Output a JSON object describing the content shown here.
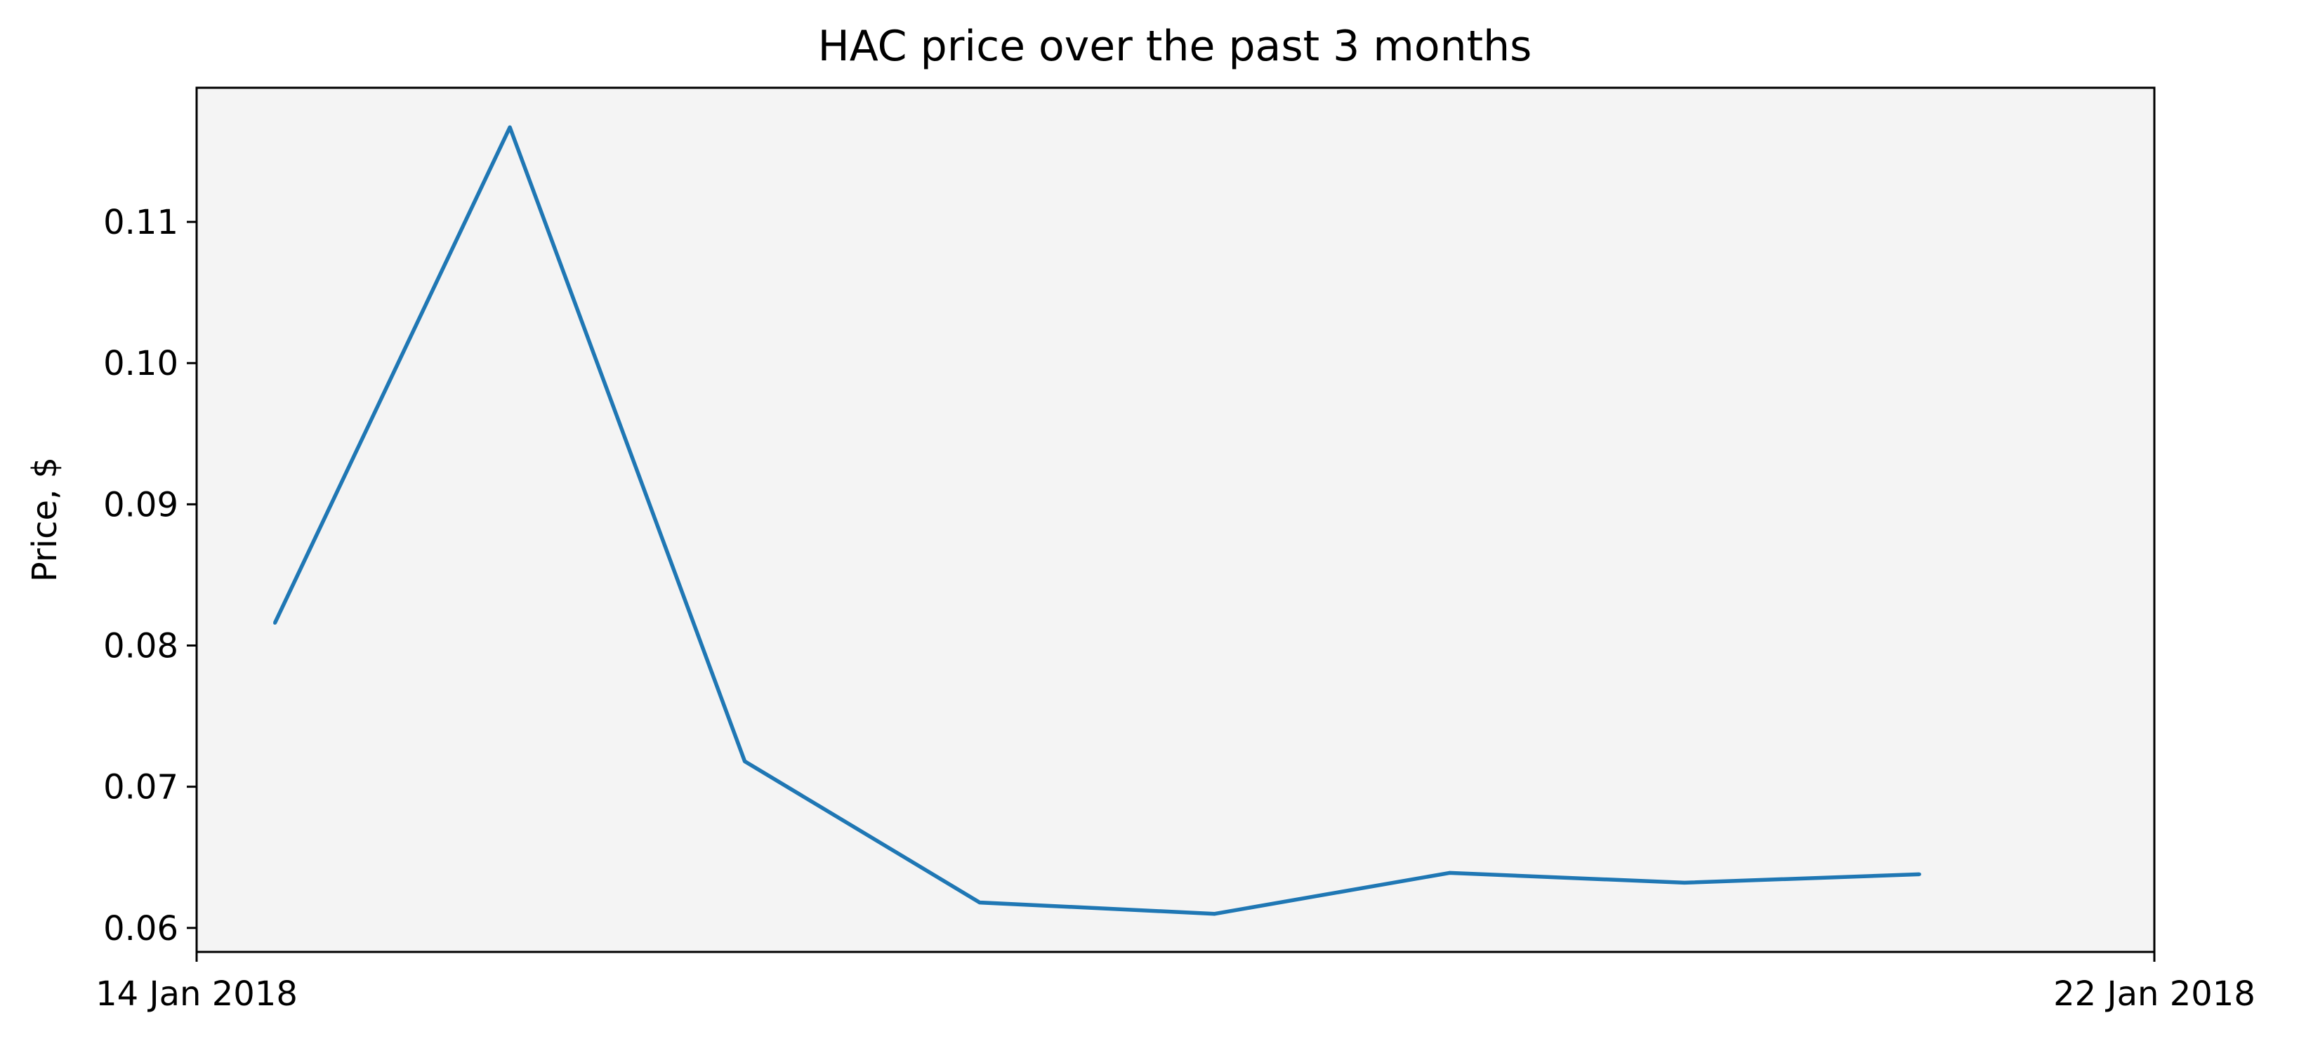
{
  "chart_data": {
    "type": "line",
    "title": "HAC price over the past 3 months",
    "xlabel": "",
    "ylabel": "Price, $",
    "x_tick_labels": [
      "14 Jan 2018",
      "22 Jan 2018"
    ],
    "x": [
      "2018-01-14",
      "2018-01-15",
      "2018-01-16",
      "2018-01-17",
      "2018-01-18",
      "2018-01-19",
      "2018-01-20",
      "2018-01-21"
    ],
    "series": [
      {
        "values": [
          0.0816,
          0.1167,
          0.0718,
          0.0618,
          0.061,
          0.0639,
          0.0632,
          0.0638
        ]
      }
    ],
    "xlim": [
      "2018-01-13 16:00",
      "2018-01-22"
    ],
    "ylim": [
      0.0583,
      0.1195
    ],
    "y_ticks": [
      0.06,
      0.07,
      0.08,
      0.09,
      0.1,
      0.11
    ],
    "grid": false,
    "line_color": "#1f77b4",
    "plot_background": "#f4f4f4"
  }
}
